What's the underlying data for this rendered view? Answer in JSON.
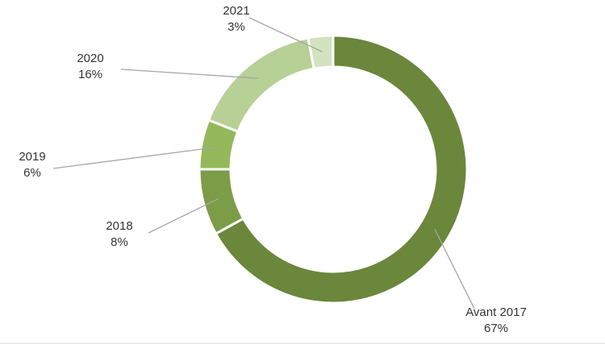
{
  "chart_data": {
    "type": "pie",
    "variant": "donut",
    "title": "",
    "categories": [
      "Avant 2017",
      "2018",
      "2019",
      "2020",
      "2021"
    ],
    "values": [
      67,
      8,
      6,
      16,
      3
    ],
    "value_labels": [
      "67%",
      "8%",
      "6%",
      "16%",
      "3%"
    ],
    "colors": [
      "#6a873c",
      "#7c9c48",
      "#94b85a",
      "#b7d095",
      "#d3e2bf"
    ],
    "legend": "none",
    "data_labels": "outside-with-leader-lines"
  }
}
